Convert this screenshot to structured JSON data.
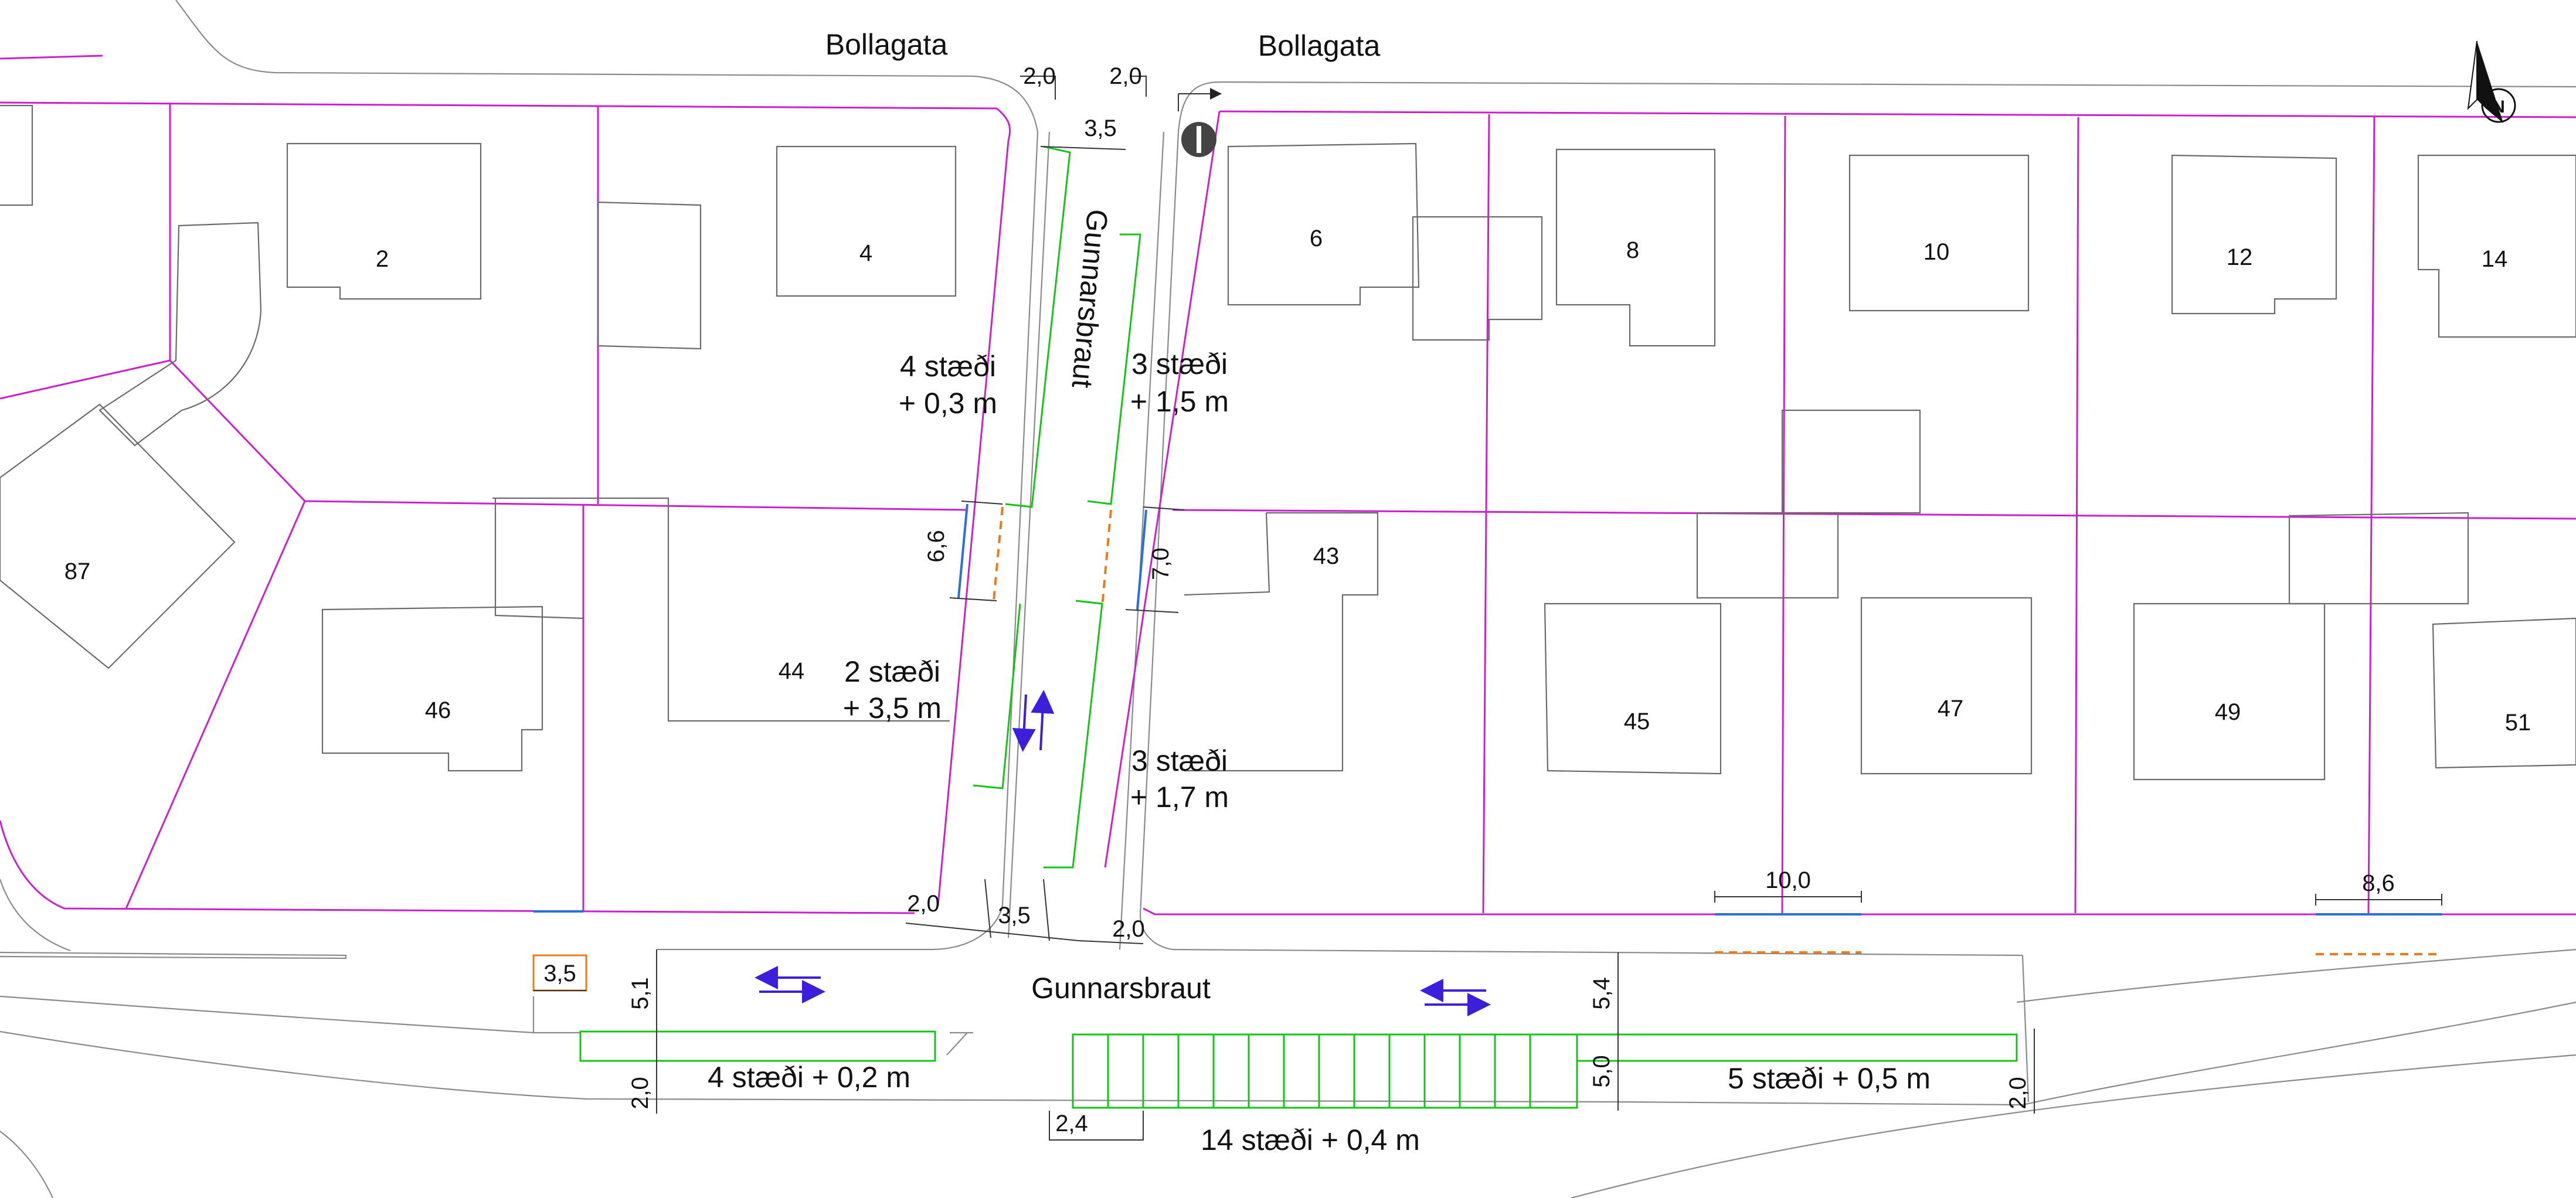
{
  "streets": {
    "bollagata_left": "Bollagata",
    "bollagata_right": "Bollagata",
    "gunnarsbraut_vertical": "Gunnarsbraut",
    "gunnarsbraut_horizontal": "Gunnarsbraut"
  },
  "lots": {
    "n2": "2",
    "n4": "4",
    "n6": "6",
    "n8": "8",
    "n10": "10",
    "n12": "12",
    "n14": "14",
    "n87": "87",
    "n46": "46",
    "n44": "44",
    "n43": "43",
    "n45": "45",
    "n47": "47",
    "n49": "49",
    "n51": "51"
  },
  "parking": {
    "left_upper_l1": "4 stæði",
    "left_upper_l2": "+ 0,3 m",
    "right_upper_l1": "3 stæði",
    "right_upper_l2": "+ 1,5 m",
    "left_lower_l1": "2 stæði",
    "left_lower_l2": "+ 3,5 m",
    "right_lower_l1": "3 stæði",
    "right_lower_l2": "+ 1,7 m",
    "bottom_left": "4 stæði + 0,2 m",
    "bottom_mid": "14 stæði + 0,4 m",
    "bottom_right": "5 stæði + 0,5 m"
  },
  "dimensions": {
    "top_left_width": "2,0",
    "top_right_width": "2,0",
    "top_road_width": "3,5",
    "left_crossing": "6,6",
    "right_crossing": "7,0",
    "bottom_left_width": "2,0",
    "bottom_road_width": "3,5",
    "bottom_right_width": "2,0",
    "driveway_47": "10,0",
    "driveway_51": "8,6",
    "small_box": "3,5",
    "road_left_height": "5,1",
    "road_right_height": "5,4",
    "sidewalk_left": "2,0",
    "parking_depth": "5,0",
    "sidewalk_right": "2,0",
    "stall_width": "2,4"
  },
  "colors": {
    "lot_boundary": "#cc1fcc",
    "parking": "#14c414",
    "crossing_blue": "#2a6fdc",
    "crossing_orange": "#e87b1e",
    "traffic_arrows": "#3a1fdc"
  },
  "icons": {
    "north_arrow": "north-arrow-icon",
    "no_entry_sign": "no-entry-sign-icon"
  }
}
